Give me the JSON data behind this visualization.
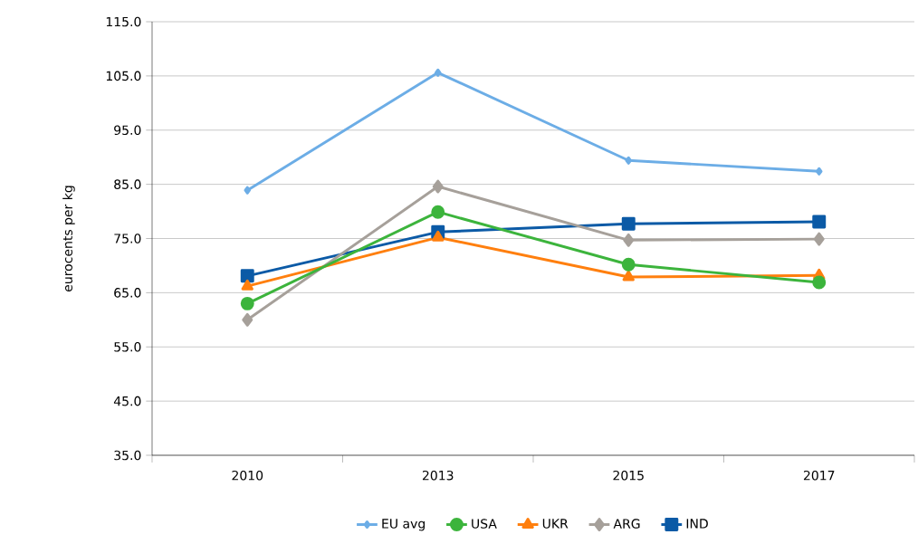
{
  "chart_data": {
    "type": "line",
    "ylabel": "eurocents per kg",
    "categories": [
      "2010",
      "2013",
      "2015",
      "2017"
    ],
    "series": [
      {
        "name": "EU avg",
        "color": "#6cade6",
        "marker": "diamond",
        "values": [
          83.9,
          105.6,
          89.4,
          87.4
        ]
      },
      {
        "name": "USA",
        "color": "#3cb43c",
        "marker": "circle",
        "values": [
          63.0,
          79.9,
          70.2,
          66.9
        ]
      },
      {
        "name": "UKR",
        "color": "#ff7f0e",
        "marker": "triangle",
        "values": [
          66.2,
          75.2,
          67.9,
          68.2
        ]
      },
      {
        "name": "ARG",
        "color": "#a6a09a",
        "marker": "diamond",
        "values": [
          60.0,
          84.6,
          74.7,
          74.9
        ]
      },
      {
        "name": "IND",
        "color": "#0b5aa6",
        "marker": "square",
        "values": [
          68.1,
          76.2,
          77.7,
          78.1
        ]
      }
    ],
    "ylim": [
      35,
      115
    ],
    "yticks": [
      {
        "value": 35,
        "label": "35.0"
      },
      {
        "value": 45,
        "label": "45.0"
      },
      {
        "value": 55,
        "label": "55.0"
      },
      {
        "value": 65,
        "label": "65.0"
      },
      {
        "value": 75,
        "label": "75.0"
      },
      {
        "value": 85,
        "label": "85.0"
      },
      {
        "value": 95,
        "label": "95.0"
      },
      {
        "value": 105,
        "label": "105.0"
      },
      {
        "value": 115,
        "label": "115.0"
      }
    ],
    "grid": "y",
    "legend": "bottom",
    "line_style": "solid"
  }
}
